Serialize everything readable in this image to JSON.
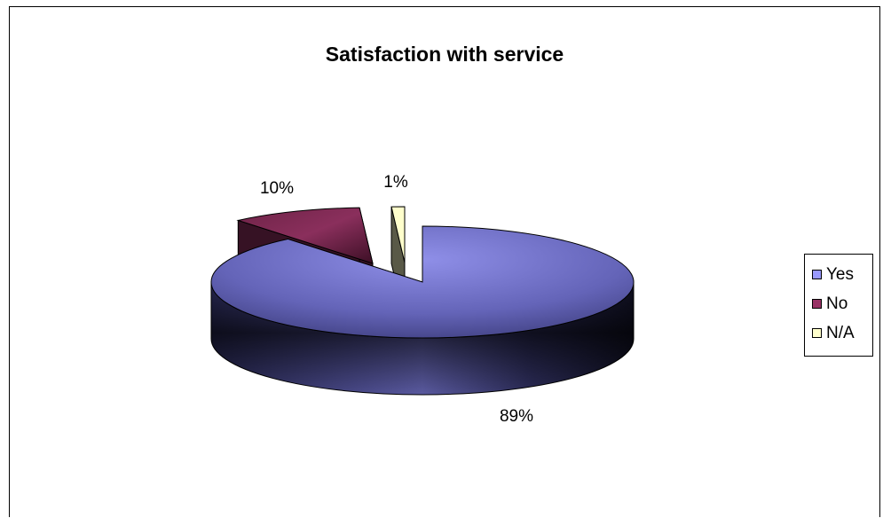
{
  "chart_data": {
    "type": "pie",
    "title": "Satisfaction with service",
    "categories": [
      "Yes",
      "No",
      "N/A"
    ],
    "values": [
      89,
      10,
      1
    ],
    "data_labels": [
      "89%",
      "10%",
      "1%"
    ],
    "colors": [
      "#9999ff",
      "#993366",
      "#ffffcc"
    ],
    "legend_position": "right",
    "style": "3d-exploded"
  }
}
